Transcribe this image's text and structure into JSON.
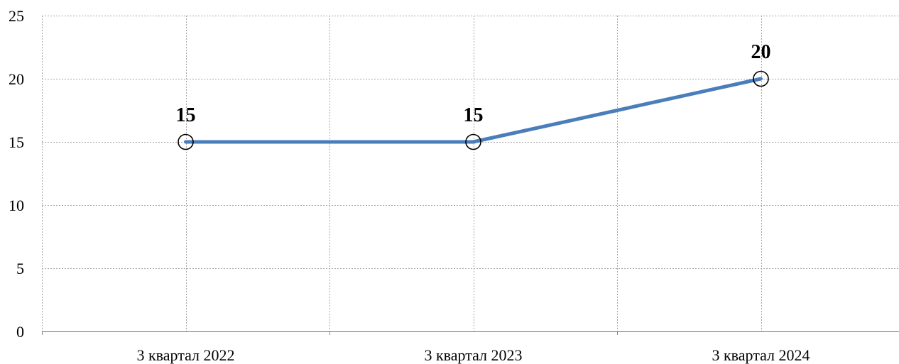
{
  "chart_data": {
    "type": "line",
    "title": "",
    "xlabel": "",
    "ylabel": "",
    "categories": [
      "3 квартал 2022",
      "3 квартал 2023",
      "3 квартал 2024"
    ],
    "series": [
      {
        "values": [
          15,
          15,
          20
        ],
        "color": "#4a7ebb",
        "marker": "circle-outline",
        "data_labels": [
          "15",
          "15",
          "20"
        ]
      }
    ],
    "ylim": [
      0,
      25
    ],
    "yticks": [
      0,
      5,
      10,
      15,
      20,
      25
    ],
    "y_tick_labels": [
      "0",
      "5",
      "10",
      "15",
      "20",
      "25"
    ],
    "grid": "dashed, horizontal and vertical",
    "legend": "none"
  }
}
